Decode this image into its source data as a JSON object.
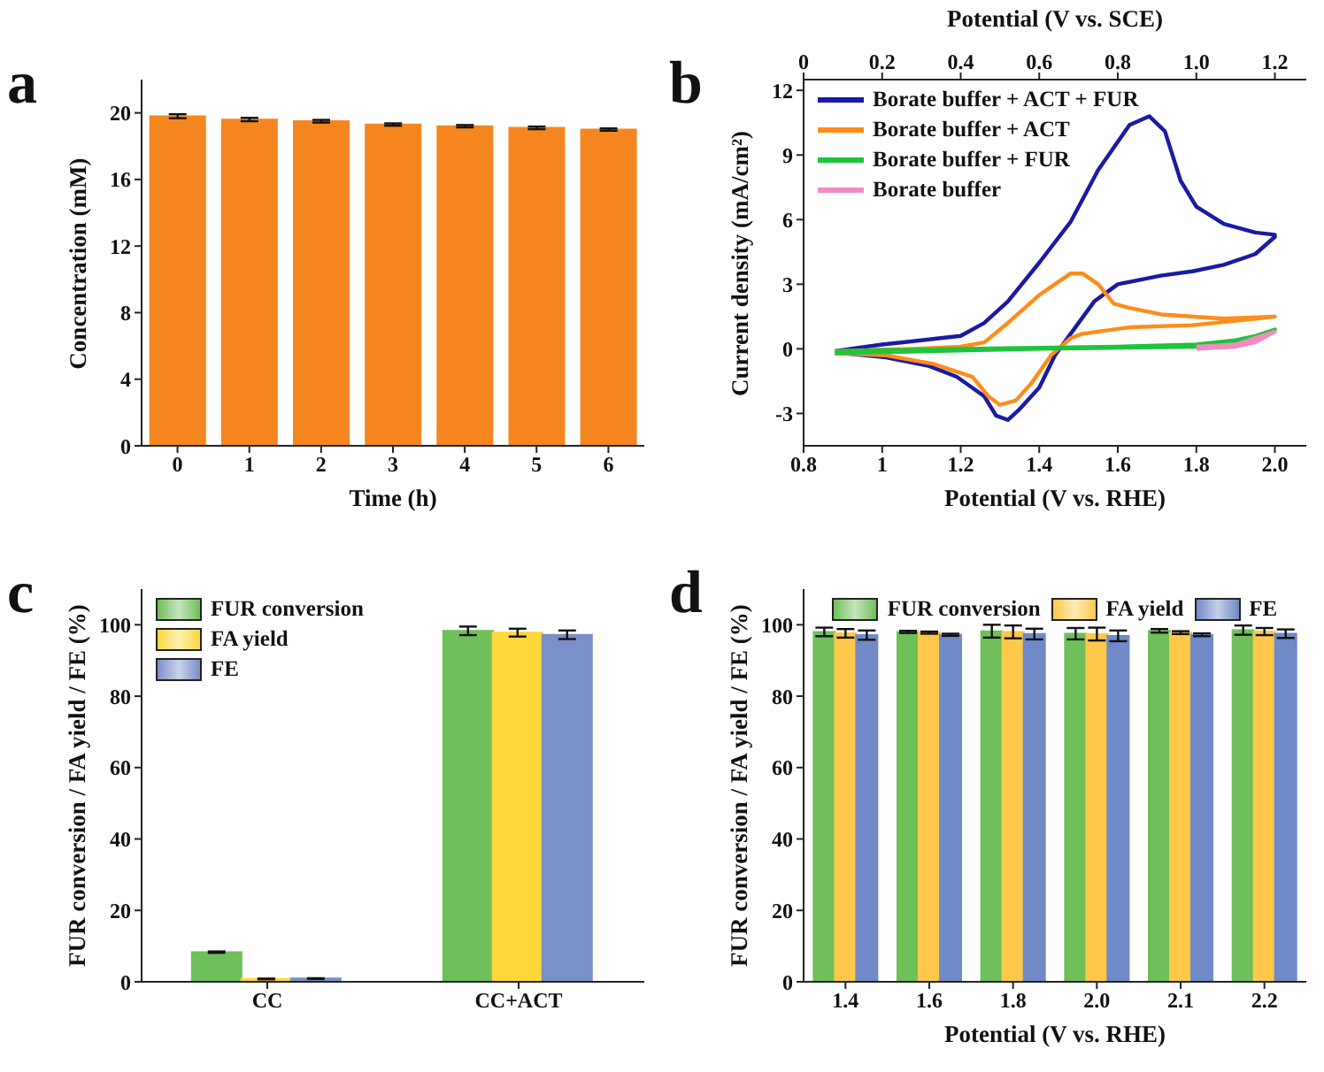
{
  "chart_data": [
    {
      "type": "bar",
      "title": "a",
      "xlabel": "Time (h)",
      "ylabel": "Concentration (mM)",
      "categories": [
        "0",
        "1",
        "2",
        "3",
        "4",
        "5",
        "6"
      ],
      "series": [
        {
          "color": "#f5861f",
          "values": [
            19.8,
            19.6,
            19.5,
            19.3,
            19.2,
            19.1,
            19.0
          ],
          "errors": [
            0.12,
            0.1,
            0.08,
            0.07,
            0.07,
            0.08,
            0.07
          ]
        }
      ],
      "ylim": [
        0,
        22
      ],
      "yticks": [
        0,
        4,
        8,
        12,
        16,
        20
      ],
      "grid": false,
      "legend": false
    },
    {
      "type": "line",
      "title": "b",
      "xlabel": "Potential (V vs. RHE)",
      "x2label": "Potential (V vs. SCE)",
      "ylabel": "Current density (mA/cm²)",
      "legend": "top left",
      "marker": "none",
      "series": [
        {
          "name": "Borate buffer + ACT + FUR",
          "color": "#1a1aa6",
          "x": [
            0.88,
            1.0,
            1.2,
            1.26,
            1.32,
            1.4,
            1.48,
            1.55,
            1.63,
            1.68,
            1.72,
            1.76,
            1.8,
            1.87,
            1.95,
            2.0,
            2.0,
            1.95,
            1.87,
            1.79,
            1.71,
            1.6,
            1.54,
            1.48,
            1.44,
            1.4,
            1.35,
            1.32,
            1.29,
            1.26,
            1.19,
            1.12,
            1.01,
            0.9,
            0.88
          ],
          "values": [
            -0.1,
            0.2,
            0.6,
            1.2,
            2.2,
            4.0,
            5.9,
            8.3,
            10.4,
            10.8,
            10.1,
            7.8,
            6.6,
            5.8,
            5.4,
            5.3,
            5.2,
            4.4,
            3.9,
            3.6,
            3.4,
            3.0,
            2.2,
            0.7,
            -0.3,
            -1.8,
            -2.8,
            -3.3,
            -3.1,
            -2.2,
            -1.3,
            -0.8,
            -0.4,
            -0.2,
            -0.2
          ]
        },
        {
          "name": "Borate buffer + ACT",
          "color": "#ff8c1a",
          "x": [
            0.88,
            1.08,
            1.2,
            1.26,
            1.32,
            1.4,
            1.48,
            1.51,
            1.55,
            1.59,
            1.63,
            1.71,
            1.87,
            2.0,
            1.95,
            1.79,
            1.63,
            1.51,
            1.48,
            1.43,
            1.38,
            1.34,
            1.3,
            1.27,
            1.23,
            1.13,
            1.01,
            0.88
          ],
          "values": [
            -0.1,
            0,
            0.1,
            0.3,
            1.2,
            2.5,
            3.5,
            3.5,
            3.0,
            2.1,
            1.9,
            1.6,
            1.4,
            1.5,
            1.4,
            1.1,
            1.0,
            0.7,
            0.5,
            -0.3,
            -1.6,
            -2.4,
            -2.6,
            -2.2,
            -1.3,
            -0.7,
            -0.3,
            -0.2
          ]
        },
        {
          "name": "Borate buffer + FUR",
          "color": "#1ec43c",
          "x": [
            0.88,
            1.2,
            1.6,
            1.8,
            1.9,
            1.95,
            2.0,
            1.95,
            1.8,
            1.4,
            0.88
          ],
          "values": [
            -0.1,
            0,
            0.1,
            0.2,
            0.4,
            0.6,
            0.9,
            0.5,
            0.1,
            0,
            -0.2
          ]
        },
        {
          "name": "Borate buffer",
          "color": "#f08cc0",
          "x": [
            1.8,
            1.9,
            2.0,
            1.95,
            1.9,
            1.8
          ],
          "values": [
            0.1,
            0.2,
            0.8,
            0.3,
            0.1,
            0
          ]
        }
      ],
      "xlim": [
        0.8,
        2.08
      ],
      "xticks": [
        0.8,
        1,
        1.2,
        1.4,
        1.6,
        1.8,
        {
          "value": 2,
          "label": "2.0"
        }
      ],
      "x2lim": [
        0,
        1.28
      ],
      "x2ticks": [
        0,
        0.2,
        0.4,
        0.6,
        0.8,
        {
          "value": 1,
          "label": "1.0"
        },
        1.2
      ],
      "ylim": [
        -4.5,
        12.5
      ],
      "yticks": [
        -3,
        0,
        3,
        6,
        9,
        12
      ],
      "grid": false
    },
    {
      "type": "bar",
      "title": "c",
      "ylabel": "FUR conversion / FA yield / FE (%)",
      "categories": [
        "CC",
        "CC+ACT"
      ],
      "legend": "top left",
      "series": [
        {
          "name": "FUR conversion",
          "color": "#6fbf5a",
          "values": [
            8.3,
            98.3
          ],
          "errors": [
            0.2,
            1.2
          ]
        },
        {
          "name": "FA yield",
          "color": "#ffd83a",
          "values": [
            0.8,
            97.8
          ],
          "errors": [
            0.1,
            1.1
          ]
        },
        {
          "name": "FE",
          "color": "#7b8fc8",
          "values": [
            0.9,
            97.2
          ],
          "errors": [
            0.1,
            1.2
          ]
        }
      ],
      "ylim": [
        0,
        110
      ],
      "yticks": [
        0,
        20,
        40,
        60,
        80,
        100
      ],
      "grid": false
    },
    {
      "type": "bar",
      "title": "d",
      "xlabel": "Potential (V vs. RHE)",
      "ylabel": "FUR conversion / FA yield / FE (%)",
      "categories": [
        "1.4",
        "1.6",
        "1.8",
        "2.0",
        "2.1",
        "2.2"
      ],
      "legend": "top",
      "series": [
        {
          "name": "FUR conversion",
          "color": "#6fbf5a",
          "values": [
            98.0,
            98.0,
            98.2,
            97.5,
            98.3,
            98.5
          ],
          "errors": [
            1.2,
            0.3,
            1.8,
            1.6,
            0.5,
            1.3
          ]
        },
        {
          "name": "FA yield",
          "color": "#ffc84a",
          "values": [
            97.6,
            97.8,
            98.0,
            97.4,
            97.8,
            98.1
          ],
          "errors": [
            1.2,
            0.3,
            1.8,
            1.8,
            0.4,
            1.0
          ]
        },
        {
          "name": "FE",
          "color": "#6f8ac6",
          "values": [
            97.1,
            97.2,
            97.4,
            96.9,
            97.2,
            97.5
          ],
          "errors": [
            1.3,
            0.3,
            1.5,
            1.5,
            0.4,
            1.2
          ]
        }
      ],
      "ylim": [
        0,
        110
      ],
      "yticks": [
        0,
        20,
        40,
        60,
        80,
        100
      ],
      "grid": false
    }
  ]
}
